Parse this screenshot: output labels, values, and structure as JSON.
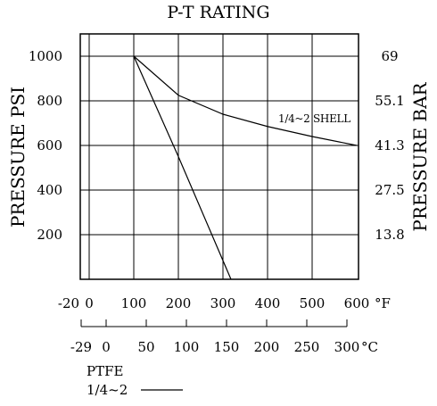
{
  "chart_data": {
    "type": "line",
    "title": "P-T RATING",
    "ylabel_left": "PRESSURE PSI",
    "ylabel_right": "PRESSURE BAR",
    "x_unit_f": "°F",
    "x_unit_c": "°C",
    "ylim_psi": [
      0,
      1100
    ],
    "xlim_f": [
      -20,
      600
    ],
    "grid": true,
    "x_ticks_f": [
      "-20",
      "0",
      "100",
      "200",
      "300",
      "400",
      "500",
      "600"
    ],
    "x_ticks_f_values": [
      -20,
      0,
      100,
      200,
      300,
      400,
      500,
      600
    ],
    "x_ticks_c": [
      "-29",
      "0",
      "50",
      "100",
      "150",
      "200",
      "250",
      "300"
    ],
    "x_ticks_c_values": [
      -29,
      0,
      50,
      100,
      150,
      200,
      250,
      300
    ],
    "y_ticks_psi": [
      "200",
      "400",
      "600",
      "800",
      "1000"
    ],
    "y_ticks_psi_values": [
      200,
      400,
      600,
      800,
      1000
    ],
    "y_ticks_bar": [
      "13.8",
      "27.5",
      "41.3",
      "55.1",
      "69"
    ],
    "y_ticks_bar_psi_values": [
      200,
      400,
      600,
      800,
      1000
    ],
    "series": [
      {
        "name": "1/4~2 SHELL",
        "x": [
          100,
          200,
          300,
          400,
          500,
          600
        ],
        "y": [
          1000,
          825,
          740,
          685,
          640,
          600
        ]
      },
      {
        "name": "1/4~2",
        "x": [
          100,
          200,
          318
        ],
        "y": [
          1000,
          550,
          0
        ]
      }
    ],
    "legend": {
      "title": "PTFE",
      "entries": [
        "1/4~2"
      ]
    }
  }
}
